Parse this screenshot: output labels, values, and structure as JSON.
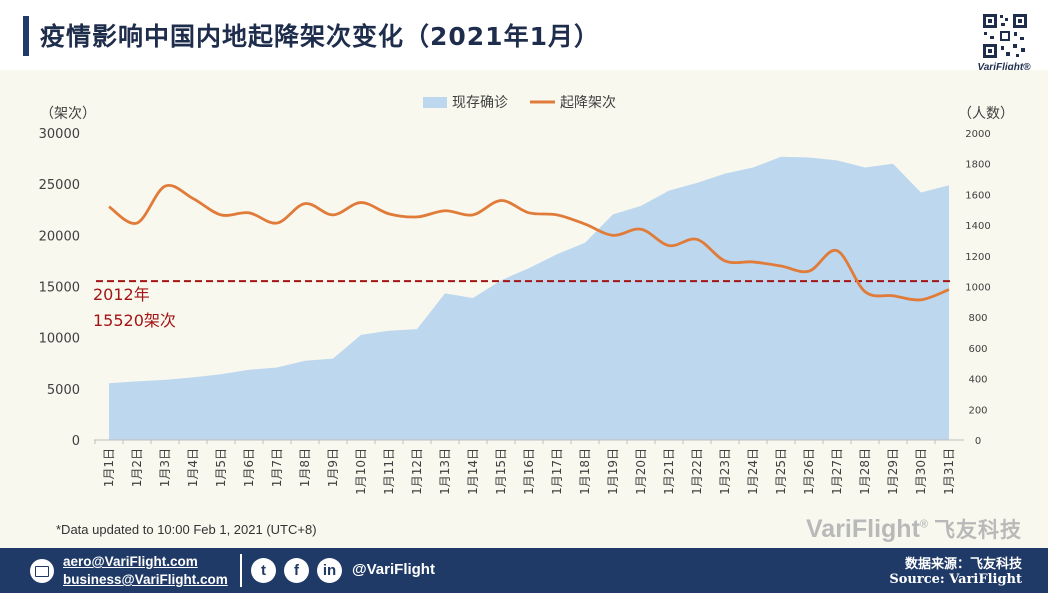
{
  "header": {
    "title": "疫情影响中国内地起降架次变化（2021年1月）",
    "logo_text": "VariFlight®"
  },
  "chart_data": {
    "type": "area+line",
    "legend": [
      "现存确诊",
      "起降架次"
    ],
    "legend_position": "top-center",
    "left_axis_label": "（架次）",
    "right_axis_label": "（人数）",
    "left_ticks": [
      "30000",
      "25000",
      "20000",
      "15000",
      "10000",
      "5000",
      "0"
    ],
    "right_ticks": [
      "2000",
      "1800",
      "1600",
      "1400",
      "1200",
      "1000",
      "800",
      "600",
      "400",
      "200",
      "0"
    ],
    "ylim_left": [
      0,
      30000
    ],
    "ylim_right": [
      0,
      2000
    ],
    "categories": [
      "1月1日",
      "1月2日",
      "1月3日",
      "1月4日",
      "1月5日",
      "1月6日",
      "1月7日",
      "1月8日",
      "1月9日",
      "1月10日",
      "1月11日",
      "1月12日",
      "1月13日",
      "1月14日",
      "1月15日",
      "1月16日",
      "1月17日",
      "1月18日",
      "1月19日",
      "1月20日",
      "1月21日",
      "1月22日",
      "1月23日",
      "1月24日",
      "1月25日",
      "1月26日",
      "1月27日",
      "1月28日",
      "1月29日",
      "1月30日",
      "1月31日"
    ],
    "series": [
      {
        "name": "现存确诊",
        "axis": "right",
        "type": "area",
        "color": "#bdd7ee",
        "values": [
          370,
          382,
          392,
          408,
          428,
          458,
          472,
          516,
          530,
          685,
          712,
          722,
          955,
          925,
          1040,
          1120,
          1210,
          1285,
          1470,
          1525,
          1625,
          1675,
          1735,
          1775,
          1845,
          1840,
          1822,
          1775,
          1800,
          1612,
          1660
        ]
      },
      {
        "name": "起降架次",
        "axis": "left",
        "type": "line",
        "color": "#e07b39",
        "values": [
          22800,
          21200,
          24800,
          23600,
          22000,
          22200,
          21200,
          23100,
          22000,
          23200,
          22100,
          21800,
          22400,
          22000,
          23400,
          22200,
          22000,
          21100,
          20000,
          20600,
          19000,
          19600,
          17500,
          17400,
          17000,
          16500,
          18500,
          14500,
          14100,
          13700,
          14700
        ]
      }
    ],
    "reference_line": {
      "value": 15520,
      "label_year": "2012年",
      "label_value": "15520架次",
      "color": "#a31515"
    }
  },
  "footnote": "*Data updated to 10:00 Feb 1, 2021 (UTC+8)",
  "watermark": {
    "brand": "VariFlight",
    "reg": "®",
    "cn": "飞友科技"
  },
  "footer": {
    "email1": "aero@VariFlight.com",
    "email2": "business@VariFlight.com",
    "handle": "@VariFlight",
    "source_cn": "数据来源：飞友科技",
    "source_en": "Source: VariFlight"
  }
}
